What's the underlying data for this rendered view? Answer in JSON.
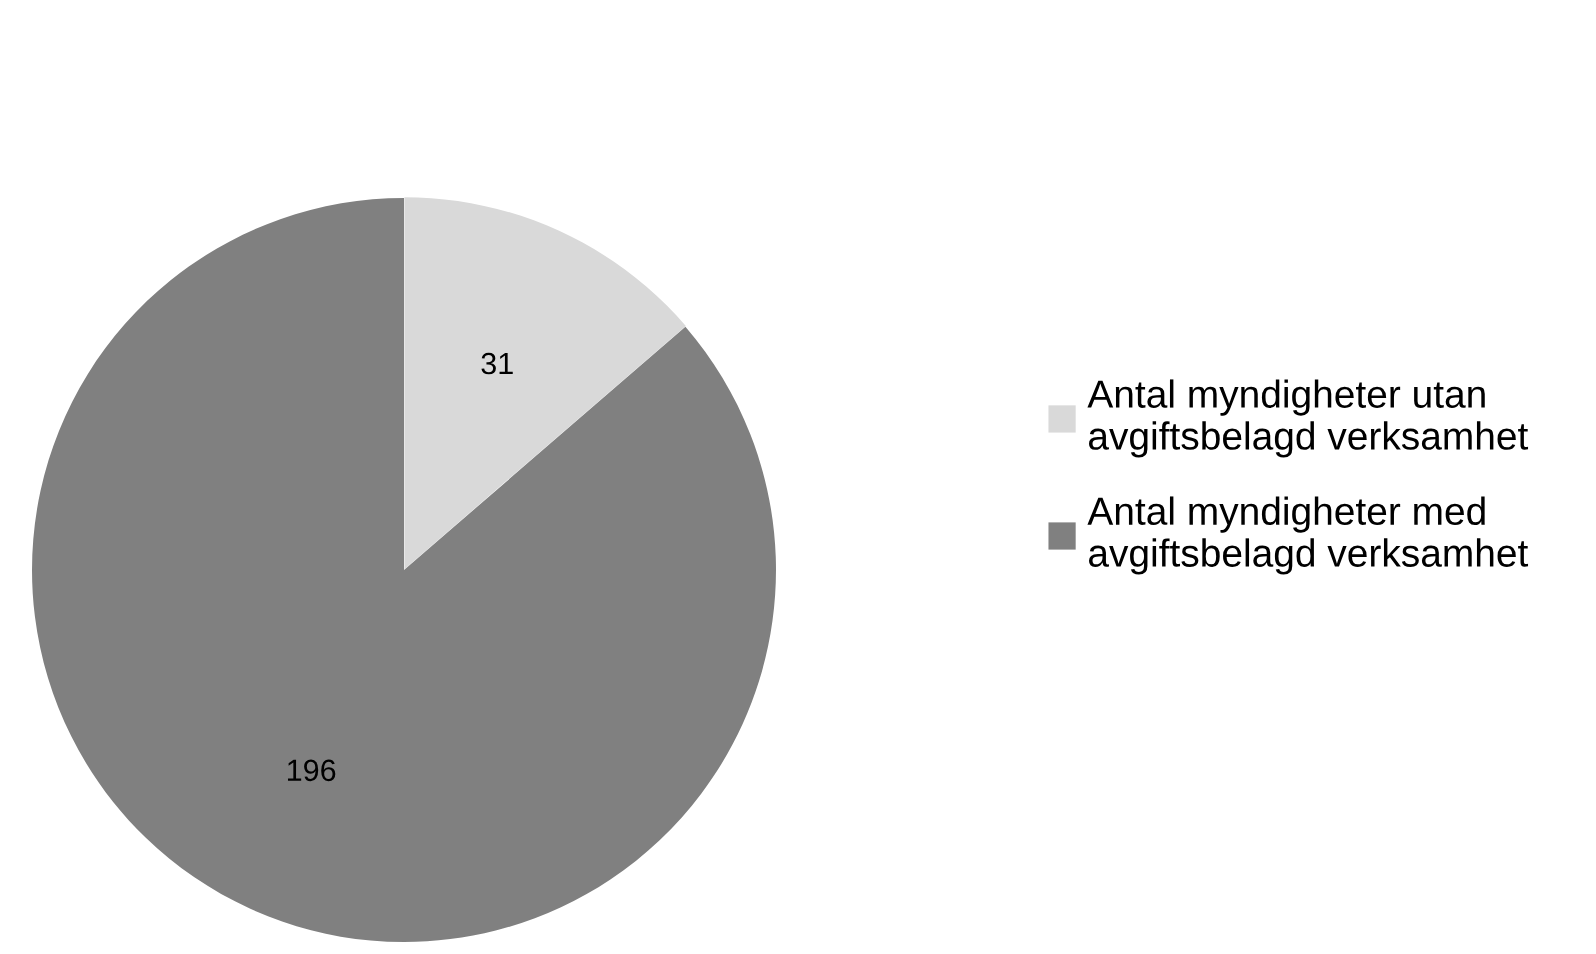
{
  "chart_data": {
    "type": "pie",
    "categories": [
      "Antal myndigheter utan avgiftsbelagd verksamhet",
      "Antal myndigheter med avgiftsbelagd verksamhet"
    ],
    "values": [
      31,
      196
    ],
    "colors": [
      "#d9d9d9",
      "#808080"
    ],
    "data_labels": true,
    "legend": "right"
  }
}
